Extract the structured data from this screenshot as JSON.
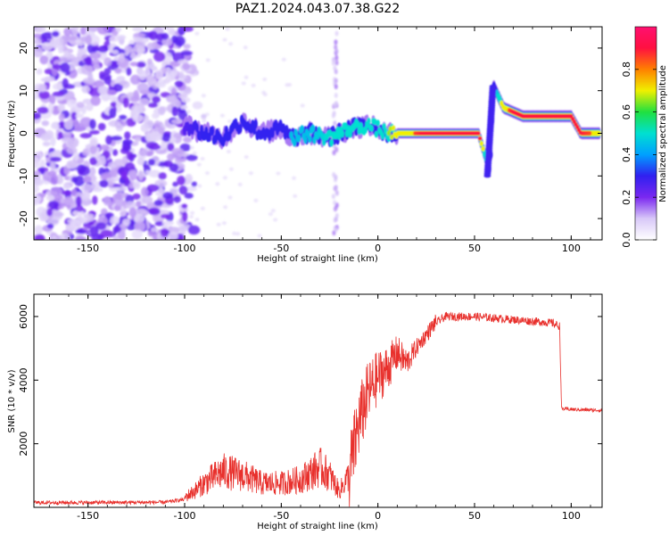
{
  "title": "PAZ1.2024.043.07.38.G22",
  "colors": {
    "snr_line": "#e8302c",
    "colormap": [
      "#ffffff",
      "#d8c8f8",
      "#7a28f0",
      "#3020f0",
      "#00a0ff",
      "#00e0d0",
      "#20e040",
      "#f0f000",
      "#ff8000",
      "#ff1040",
      "#ff1070"
    ]
  },
  "chart_data": [
    {
      "type": "heatmap",
      "xlabel": "Height of straight line (km)",
      "ylabel": "Frequency (Hz)",
      "xlim": [
        -178,
        116
      ],
      "ylim": [
        -25,
        25
      ],
      "xticks": [
        -150,
        -100,
        -50,
        0,
        50,
        100
      ],
      "yticks": [
        -20,
        -10,
        0,
        10,
        20
      ],
      "colorbar": {
        "label": "Normalized spectral amplitude",
        "range": [
          0,
          1
        ],
        "ticks": [
          "0.0",
          "0.2",
          "0.4",
          "0.6",
          "0.8"
        ],
        "tick_values": [
          0.0,
          0.2,
          0.4,
          0.6,
          0.8
        ]
      },
      "ridge": [
        {
          "x": -100,
          "y": 2,
          "amp": 0.25
        },
        {
          "x": -90,
          "y": 0,
          "amp": 0.3
        },
        {
          "x": -80,
          "y": -1,
          "amp": 0.35
        },
        {
          "x": -70,
          "y": 3,
          "amp": 0.35
        },
        {
          "x": -60,
          "y": 0,
          "amp": 0.35
        },
        {
          "x": -50,
          "y": 1,
          "amp": 0.4
        },
        {
          "x": -45,
          "y": -1,
          "amp": 0.45
        },
        {
          "x": -35,
          "y": 0,
          "amp": 0.45
        },
        {
          "x": -25,
          "y": -1,
          "amp": 0.5
        },
        {
          "x": -15,
          "y": 1,
          "amp": 0.55
        },
        {
          "x": -5,
          "y": 2,
          "amp": 0.6
        },
        {
          "x": 5,
          "y": 0,
          "amp": 0.65
        },
        {
          "x": 15,
          "y": 0,
          "amp": 0.8
        },
        {
          "x": 30,
          "y": 0,
          "amp": 1.0
        },
        {
          "x": 52,
          "y": 0,
          "amp": 1.0
        },
        {
          "x": 58,
          "y": -9,
          "amp": 0.3
        },
        {
          "x": 60,
          "y": 11,
          "amp": 0.3
        },
        {
          "x": 65,
          "y": 6,
          "amp": 0.8
        },
        {
          "x": 75,
          "y": 4,
          "amp": 1.0
        },
        {
          "x": 100,
          "y": 4,
          "amp": 1.0
        },
        {
          "x": 105,
          "y": 0,
          "amp": 0.9
        },
        {
          "x": 115,
          "y": 0,
          "amp": 0.8
        }
      ]
    },
    {
      "type": "line",
      "xlabel": "Height of straight line (km)",
      "ylabel": "SNR (10 * v/v)",
      "xlim": [
        -178,
        116
      ],
      "ylim": [
        0,
        6700
      ],
      "xticks": [
        -150,
        -100,
        -50,
        0,
        50,
        100
      ],
      "yticks": [
        2000,
        4000,
        6000
      ],
      "series": [
        {
          "x": [
            -178,
            -150,
            -110,
            -100,
            -95,
            -90,
            -80,
            -70,
            -60,
            -50,
            -40,
            -30,
            -25,
            -20,
            -15,
            -10,
            -5,
            0,
            5,
            10,
            15,
            20,
            25,
            30,
            35,
            40,
            50,
            60,
            70,
            80,
            90,
            94,
            95,
            100,
            110,
            116
          ],
          "y": [
            150,
            150,
            160,
            250,
            400,
            600,
            900,
            800,
            600,
            600,
            700,
            1000,
            800,
            400,
            800,
            2500,
            3500,
            4000,
            4300,
            4800,
            4500,
            5000,
            5400,
            5800,
            6000,
            6000,
            6000,
            5950,
            5900,
            5850,
            5800,
            5700,
            3100,
            3080,
            3060,
            3050
          ]
        }
      ]
    }
  ]
}
